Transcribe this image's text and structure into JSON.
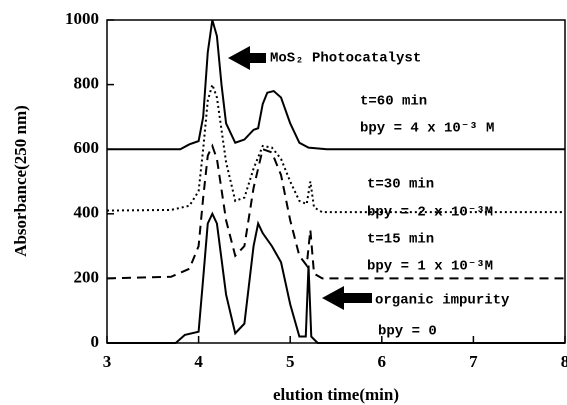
{
  "chart_data": {
    "type": "line",
    "xlabel": "elution time(min)",
    "ylabel": "Absorbance(250 nm)",
    "xlim": [
      3,
      8
    ],
    "xticks": [
      3,
      4,
      5,
      6,
      7,
      8
    ],
    "ylim": [
      0,
      1000
    ],
    "yticks": [
      0,
      200,
      400,
      600,
      800,
      1000
    ],
    "series": [
      {
        "color": "#000000",
        "dash": "solid",
        "x": [
          3,
          3.8,
          3.9,
          4.0,
          4.05,
          4.1,
          4.15,
          4.2,
          4.25,
          4.3,
          4.4,
          4.5,
          4.6,
          4.65,
          4.7,
          4.75,
          4.82,
          4.9,
          5.0,
          5.1,
          5.2,
          5.4,
          8
        ],
        "values": [
          600,
          600,
          615,
          625,
          700,
          900,
          1000,
          950,
          800,
          680,
          620,
          630,
          660,
          665,
          740,
          775,
          780,
          760,
          680,
          620,
          605,
          600,
          600
        ]
      },
      {
        "color": "#000000",
        "dash": "dotted",
        "x": [
          3,
          3.7,
          3.9,
          4.0,
          4.05,
          4.1,
          4.15,
          4.2,
          4.3,
          4.4,
          4.5,
          4.6,
          4.7,
          4.8,
          4.9,
          5.0,
          5.1,
          5.18,
          5.22,
          5.26,
          5.35,
          8
        ],
        "values": [
          410,
          412,
          425,
          470,
          600,
          750,
          800,
          760,
          560,
          440,
          450,
          540,
          610,
          605,
          570,
          500,
          440,
          430,
          500,
          420,
          405,
          405
        ]
      },
      {
        "color": "#000000",
        "dash": "dashed",
        "x": [
          3,
          3.7,
          3.9,
          4.0,
          4.05,
          4.1,
          4.15,
          4.2,
          4.3,
          4.4,
          4.5,
          4.6,
          4.7,
          4.8,
          4.9,
          5.0,
          5.1,
          5.18,
          5.22,
          5.26,
          5.35,
          8
        ],
        "values": [
          200,
          205,
          230,
          300,
          450,
          580,
          610,
          570,
          380,
          270,
          300,
          480,
          600,
          590,
          520,
          380,
          270,
          240,
          350,
          215,
          200,
          200
        ]
      },
      {
        "color": "#000000",
        "dash": "solid",
        "x": [
          3,
          3.75,
          3.85,
          4.0,
          4.05,
          4.1,
          4.15,
          4.2,
          4.3,
          4.4,
          4.5,
          4.6,
          4.65,
          4.7,
          4.8,
          4.9,
          5.0,
          5.1,
          5.17,
          5.2,
          5.23,
          5.3,
          8
        ],
        "values": [
          0,
          0,
          25,
          35,
          200,
          370,
          400,
          370,
          150,
          30,
          60,
          300,
          370,
          340,
          300,
          250,
          120,
          20,
          20,
          240,
          20,
          0,
          0
        ]
      }
    ],
    "annotations": [
      "MoS₂ Photocatalyst",
      "t=60 min",
      "bpy = 4 x 10⁻³ M",
      "t=30 min",
      "bpy = 2 x 10⁻³M",
      "t=15 min",
      "bpy = 1 x 10⁻³M",
      "organic impurity",
      "bpy = 0"
    ]
  }
}
